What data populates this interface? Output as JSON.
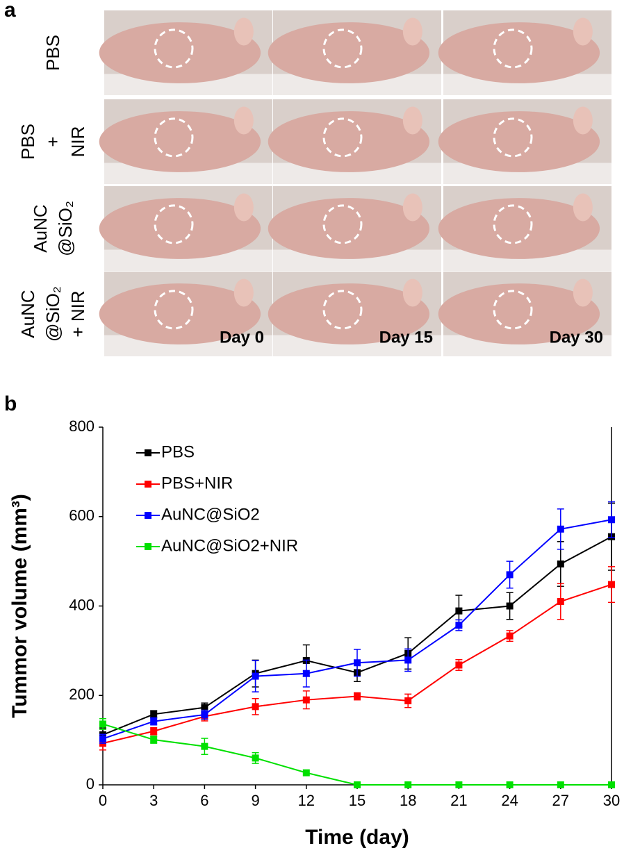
{
  "panel_a": {
    "label": "a",
    "row_labels": [
      [
        "PBS"
      ],
      [
        "PBS",
        "+",
        "NIR"
      ],
      [
        "AuNC",
        "@SiO₂"
      ],
      [
        "AuNC",
        "@SiO₂",
        "+ NIR"
      ]
    ],
    "day_labels": [
      "Day 0",
      "Day 15",
      "Day 30"
    ]
  },
  "chart_data": {
    "type": "line",
    "panel_label": "b",
    "x_label": "Time (day)",
    "y_label": "Tummor volume (mm³)",
    "x": [
      0,
      3,
      6,
      9,
      12,
      15,
      18,
      21,
      24,
      27,
      30
    ],
    "xlim": [
      0,
      30
    ],
    "xticks": [
      0,
      3,
      6,
      9,
      12,
      15,
      18,
      21,
      24,
      27,
      30
    ],
    "ylim": [
      0,
      800
    ],
    "yticks": [
      0,
      200,
      400,
      600,
      800
    ],
    "legend": "upper left",
    "series": [
      {
        "name": "PBS",
        "color": "#000000",
        "values": [
          112,
          158,
          173,
          249,
          278,
          251,
          294,
          389,
          400,
          494,
          555
        ],
        "errors": [
          15,
          8,
          10,
          30,
          35,
          20,
          35,
          35,
          30,
          50,
          75
        ]
      },
      {
        "name": "PBS+NIR",
        "color": "#ff0000",
        "values": [
          93,
          120,
          153,
          175,
          190,
          198,
          188,
          268,
          333,
          410,
          448
        ],
        "errors": [
          15,
          8,
          10,
          18,
          20,
          8,
          15,
          12,
          12,
          40,
          40
        ]
      },
      {
        "name": "AuNC@SiO2",
        "color": "#0000ff",
        "values": [
          103,
          142,
          157,
          243,
          249,
          273,
          279,
          357,
          470,
          572,
          593
        ],
        "errors": [
          10,
          8,
          10,
          35,
          30,
          30,
          25,
          12,
          30,
          45,
          40
        ]
      },
      {
        "name": "AuNC@SiO2+NIR",
        "color": "#00e000",
        "values": [
          136,
          101,
          86,
          60,
          27,
          0,
          0,
          0,
          0,
          0,
          0
        ],
        "errors": [
          12,
          8,
          18,
          12,
          0,
          0,
          0,
          0,
          0,
          0,
          0
        ]
      }
    ]
  }
}
